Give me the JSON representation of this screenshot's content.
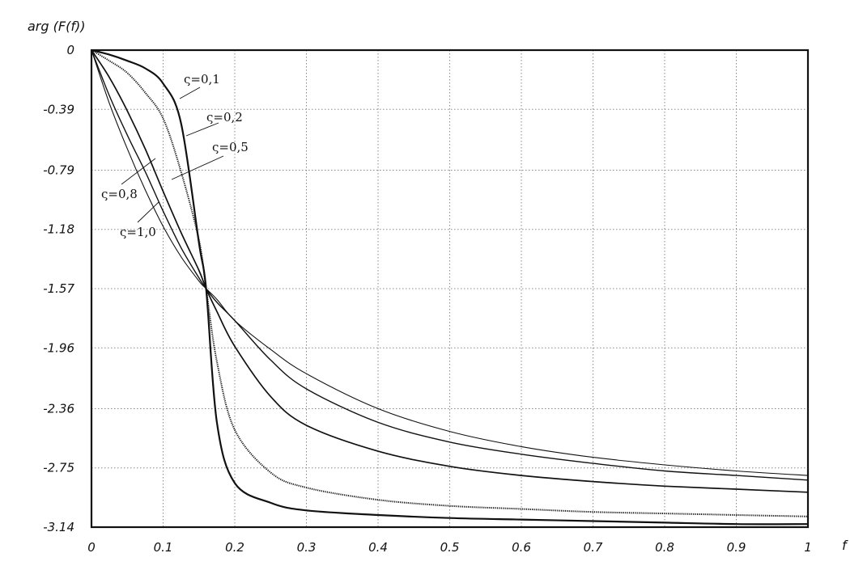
{
  "chart_data": {
    "type": "line",
    "title": "",
    "xlabel": "f",
    "ylabel": "arg (F(f))",
    "xlim": [
      0,
      1
    ],
    "ylim": [
      -3.14,
      0
    ],
    "grid": true,
    "x_ticks": [
      "0",
      "0.1",
      "0.2",
      "0.3",
      "0.4",
      "0.5",
      "0.6",
      "0.7",
      "0.8",
      "0.9",
      "1"
    ],
    "y_ticks": [
      {
        "value": 0,
        "label": "0"
      },
      {
        "value": -0.39,
        "label": "-0.39"
      },
      {
        "value": -0.79,
        "label": "-0.79"
      },
      {
        "value": -1.18,
        "label": "-1.18"
      },
      {
        "value": -1.57,
        "label": "-1.57"
      },
      {
        "value": -1.96,
        "label": "-1.96"
      },
      {
        "value": -2.36,
        "label": "-2.36"
      },
      {
        "value": -2.75,
        "label": "-2.75"
      },
      {
        "value": -3.14,
        "label": "-3.14"
      }
    ],
    "x": [
      0,
      0.025,
      0.05,
      0.075,
      0.1,
      0.125,
      0.15,
      0.16,
      0.175,
      0.2,
      0.25,
      0.3,
      0.4,
      0.5,
      0.6,
      0.7,
      0.8,
      0.9,
      1.0
    ],
    "series": [
      {
        "name": "ς=0,1",
        "values": [
          0,
          -0.03,
          -0.07,
          -0.12,
          -0.22,
          -0.48,
          -1.27,
          -1.57,
          -2.45,
          -2.85,
          -2.98,
          -3.03,
          -3.06,
          -3.08,
          -3.09,
          -3.1,
          -3.11,
          -3.12,
          -3.12
        ]
      },
      {
        "name": "ς=0,2",
        "values": [
          0,
          -0.07,
          -0.15,
          -0.28,
          -0.45,
          -0.8,
          -1.25,
          -1.57,
          -2.05,
          -2.5,
          -2.78,
          -2.88,
          -2.96,
          -3.0,
          -3.02,
          -3.04,
          -3.05,
          -3.06,
          -3.07
        ]
      },
      {
        "name": "ς=0,5",
        "values": [
          0,
          -0.18,
          -0.4,
          -0.65,
          -0.93,
          -1.2,
          -1.45,
          -1.57,
          -1.72,
          -1.95,
          -2.28,
          -2.47,
          -2.64,
          -2.74,
          -2.8,
          -2.84,
          -2.87,
          -2.89,
          -2.91
        ]
      },
      {
        "name": "ς=0,8",
        "values": [
          0,
          -0.3,
          -0.56,
          -0.8,
          -1.06,
          -1.3,
          -1.5,
          -1.57,
          -1.66,
          -1.78,
          -2.04,
          -2.23,
          -2.45,
          -2.58,
          -2.66,
          -2.72,
          -2.77,
          -2.8,
          -2.83
        ]
      },
      {
        "name": "ς=1,0",
        "values": [
          0,
          -0.35,
          -0.65,
          -0.92,
          -1.16,
          -1.36,
          -1.52,
          -1.57,
          -1.64,
          -1.78,
          -1.97,
          -2.13,
          -2.36,
          -2.51,
          -2.61,
          -2.68,
          -2.73,
          -2.77,
          -2.8
        ]
      }
    ],
    "labels": [
      {
        "text": "ς=0,1"
      },
      {
        "text": "ς=0,2"
      },
      {
        "text": "ς=0,5"
      },
      {
        "text": "ς=0,8"
      },
      {
        "text": "ς=1,0"
      }
    ]
  }
}
